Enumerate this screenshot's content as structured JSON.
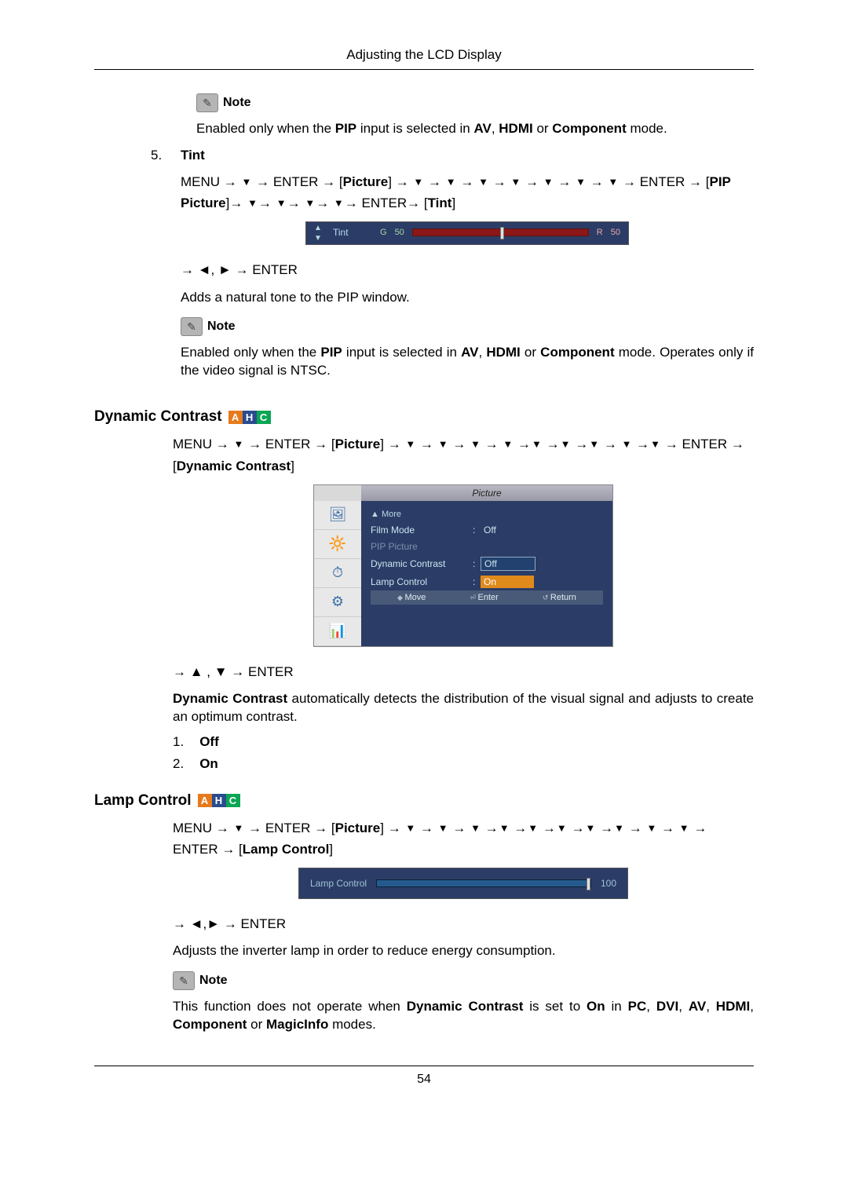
{
  "page": {
    "header": "Adjusting the LCD Display",
    "number": "54"
  },
  "notes": {
    "label": "Note",
    "pip_enabled": "Enabled only when the PIP input is selected in AV, HDMI or Component mode.",
    "pip_enabled_bold1": "PIP",
    "pip_enabled_bold2": "AV",
    "pip_enabled_bold3": "HDMI",
    "pip_enabled_bold4": "Component",
    "tint_pip": "Enabled only when the PIP input is selected in AV, HDMI or Component mode. Operates only if the video signal is NTSC.",
    "lamp_note_pre": "This function does not operate when ",
    "lamp_note_b1": "Dynamic Contrast",
    "lamp_note_mid1": " is set to ",
    "lamp_note_b2": "On",
    "lamp_note_mid2": " in ",
    "lamp_note_b3": "PC",
    "lamp_note_c1": ", ",
    "lamp_note_b4": "DVI",
    "lamp_note_b5": "AV",
    "lamp_note_b6": "HDMI",
    "lamp_note_b7": "Component",
    "lamp_note_mid3": " or ",
    "lamp_note_b8": "MagicInfo",
    "lamp_note_end": " modes."
  },
  "tint": {
    "num": "5.",
    "title": "Tint",
    "path1_pre": "MENU → ",
    "enter": "ENTER",
    "picture": "Picture",
    "pip_picture": "PIP Picture",
    "tint_label": "Tint",
    "lr_enter": "→ ◄, ► → ENTER",
    "desc": "Adds a natural tone to the PIP window."
  },
  "osd_tint": {
    "label": "Tint",
    "g_label": "G",
    "g_val": "50",
    "r_label": "R",
    "r_val": "50",
    "thumb_pct": 50
  },
  "dynamic": {
    "heading": "Dynamic Contrast",
    "path_pre": "MENU → ",
    "bracket": "Dynamic Contrast",
    "ud_enter": "→ ▲ , ▼ → ENTER",
    "desc_b": "Dynamic Contrast",
    "desc_rest": " automatically detects the distribution of the visual signal and adjusts to create an optimum contrast.",
    "off_num": "1.",
    "off": "Off",
    "on_num": "2.",
    "on": "On"
  },
  "osd_menu": {
    "title": "Picture",
    "more": "▲ More",
    "rows": [
      {
        "k": "Film Mode",
        "v": "Off",
        "dim": false,
        "sel": false,
        "hl": false
      },
      {
        "k": "PIP Picture",
        "v": "",
        "dim": true,
        "sel": false,
        "hl": false
      },
      {
        "k": "Dynamic Contrast",
        "v": "Off",
        "dim": false,
        "sel": true,
        "hl": false
      },
      {
        "k": "Lamp Control",
        "v": "On",
        "dim": false,
        "sel": false,
        "hl": true
      }
    ],
    "footer": {
      "move": "Move",
      "enter": "Enter",
      "return": "Return"
    }
  },
  "lamp": {
    "heading": "Lamp Control",
    "bracket": "Lamp Control",
    "lr_enter": "→ ◄,► → ENTER",
    "desc": "Adjusts the inverter lamp in order to reduce energy consumption."
  },
  "osd_lamp": {
    "label": "Lamp Control",
    "value": "100",
    "fill_pct": 100,
    "thumb_pct": 98
  },
  "badges": {
    "a": "A",
    "h": "H",
    "c": "C"
  },
  "glyph": {
    "arrow": "→",
    "down": "▼",
    "up": "▲",
    "left": "◄",
    "right": "►"
  }
}
